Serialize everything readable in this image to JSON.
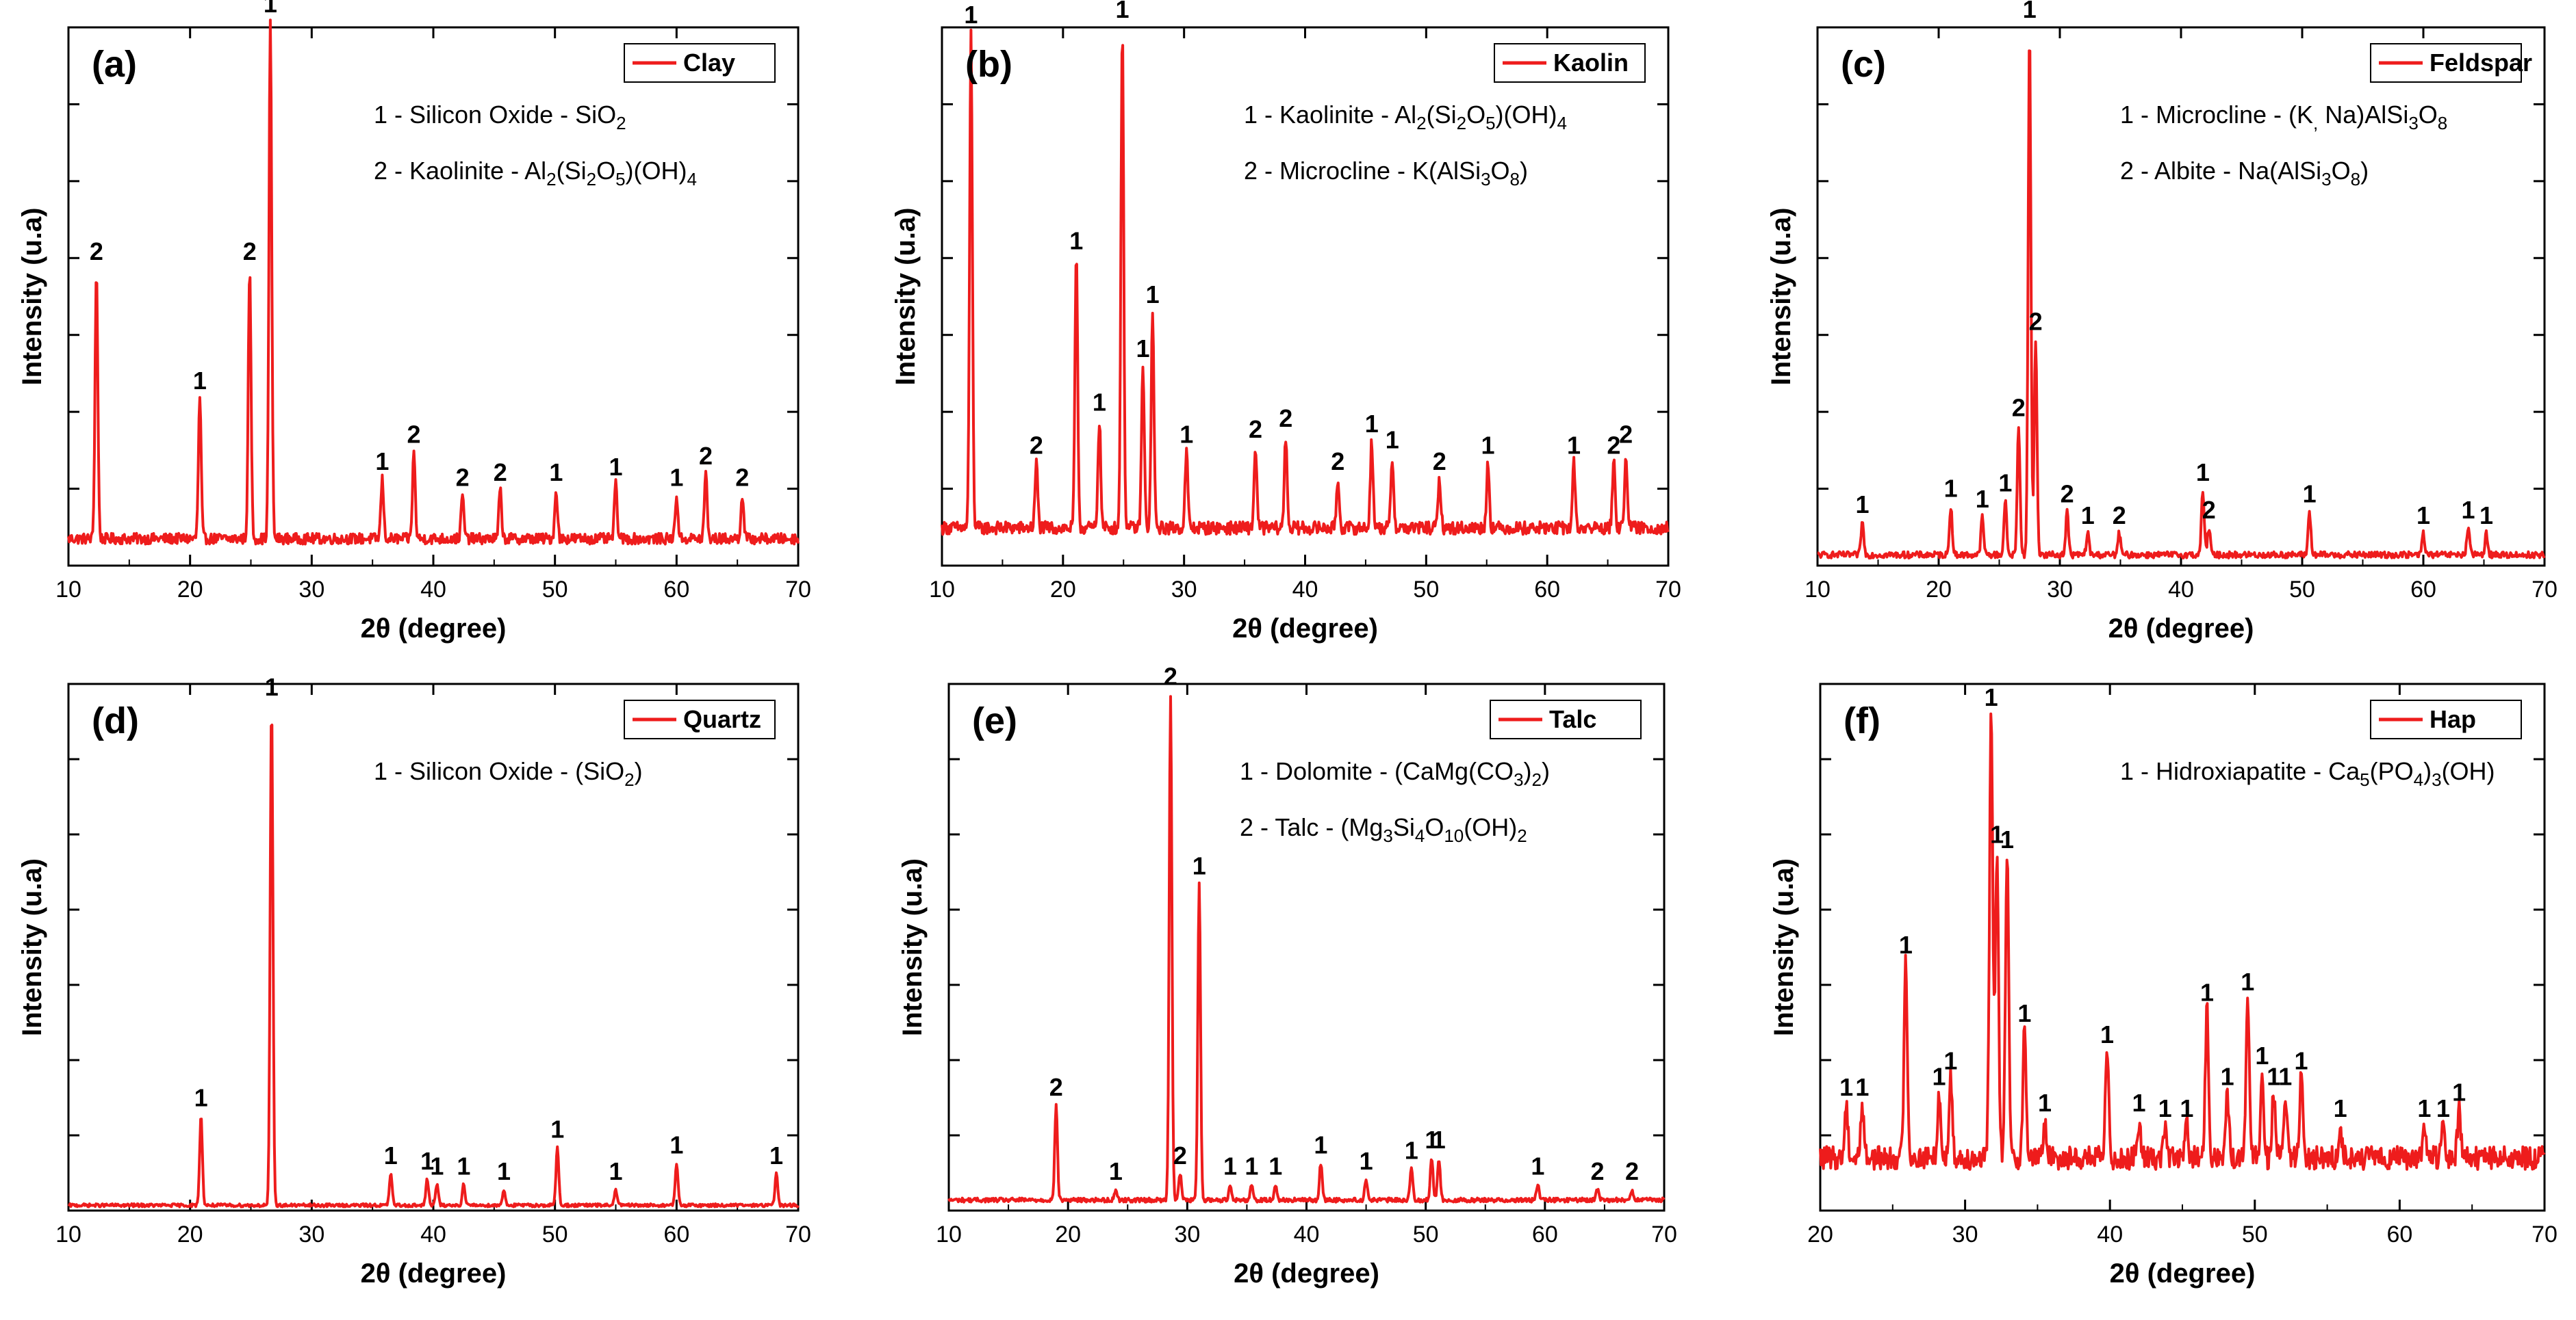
{
  "colors": {
    "trace": "#ee1c1c",
    "axis": "#000000",
    "background": "#ffffff"
  },
  "chart_data": [
    {
      "type": "line",
      "panel_label": "(a)",
      "legend": "Clay",
      "legend_position": "top-right",
      "xlabel": "2θ (degree)",
      "ylabel": "Intensity (u.a)",
      "xlim": [
        10,
        70
      ],
      "ylim": [
        0,
        100
      ],
      "xticks": [
        10,
        20,
        30,
        40,
        50,
        60,
        70
      ],
      "yticks_labeled": false,
      "baseline": 5,
      "noise": 1.0,
      "annotations": [
        {
          "id": "1",
          "text": "1 - Silicon Oxide - SiO",
          "sub": "2"
        },
        {
          "id": "2",
          "text": "2 - Kaolinite - Al",
          "sub": "2",
          "rest": "(Si",
          "sub2": "2",
          "rest2": "O",
          "sub3": "5",
          "rest3": ")(OH)",
          "sub4": "4"
        }
      ],
      "peaks": [
        {
          "x": 12.3,
          "y": 50,
          "label": "2"
        },
        {
          "x": 20.8,
          "y": 26,
          "label": "1"
        },
        {
          "x": 24.9,
          "y": 50,
          "label": "2"
        },
        {
          "x": 26.6,
          "y": 96,
          "label": "1"
        },
        {
          "x": 35.8,
          "y": 11,
          "label": "1"
        },
        {
          "x": 38.4,
          "y": 16,
          "label": "2"
        },
        {
          "x": 42.4,
          "y": 8,
          "label": "2"
        },
        {
          "x": 45.5,
          "y": 9,
          "label": "2"
        },
        {
          "x": 50.1,
          "y": 9,
          "label": "1"
        },
        {
          "x": 55.0,
          "y": 10,
          "label": "1"
        },
        {
          "x": 60.0,
          "y": 8,
          "label": "1"
        },
        {
          "x": 62.4,
          "y": 12,
          "label": "2"
        },
        {
          "x": 65.4,
          "y": 8,
          "label": "2"
        }
      ]
    },
    {
      "type": "line",
      "panel_label": "(b)",
      "legend": "Kaolin",
      "legend_position": "top-right",
      "xlabel": "2θ (degree)",
      "ylabel": "Intensity (u.a)",
      "xlim": [
        10,
        70
      ],
      "ylim": [
        0,
        100
      ],
      "xticks": [
        10,
        20,
        30,
        40,
        50,
        60,
        70
      ],
      "yticks_labeled": false,
      "baseline": 7,
      "noise": 1.2,
      "annotations": [
        {
          "text": "1 - Kaolinite - Al",
          "sub": "2",
          "rest": "(Si",
          "sub2": "2",
          "rest2": "O",
          "sub3": "5",
          "rest3": ")(OH)",
          "sub4": "4"
        },
        {
          "text": "2 - Microcline - K(AlSi",
          "sub": "3",
          "rest": "O",
          "sub2": "8",
          "rest2": ")"
        }
      ],
      "peaks": [
        {
          "x": 12.4,
          "y": 92,
          "label": "1"
        },
        {
          "x": 17.8,
          "y": 12,
          "label": "2"
        },
        {
          "x": 21.1,
          "y": 50,
          "label": "1"
        },
        {
          "x": 23.0,
          "y": 20,
          "label": "1"
        },
        {
          "x": 24.9,
          "y": 93,
          "label": "1"
        },
        {
          "x": 26.6,
          "y": 30,
          "label": "1"
        },
        {
          "x": 27.4,
          "y": 40,
          "label": "1"
        },
        {
          "x": 30.2,
          "y": 14,
          "label": "1"
        },
        {
          "x": 35.9,
          "y": 15,
          "label": "2"
        },
        {
          "x": 38.4,
          "y": 17,
          "label": "2"
        },
        {
          "x": 42.7,
          "y": 9,
          "label": "2"
        },
        {
          "x": 45.5,
          "y": 16,
          "label": "1"
        },
        {
          "x": 47.2,
          "y": 13,
          "label": "1"
        },
        {
          "x": 51.1,
          "y": 9,
          "label": "2"
        },
        {
          "x": 55.1,
          "y": 12,
          "label": "1"
        },
        {
          "x": 62.2,
          "y": 12,
          "label": "1"
        },
        {
          "x": 65.5,
          "y": 12,
          "label": "2"
        },
        {
          "x": 66.5,
          "y": 14,
          "label": "2"
        }
      ]
    },
    {
      "type": "line",
      "panel_label": "(c)",
      "legend": "Feldspar",
      "legend_position": "top-right",
      "xlabel": "2θ (degree)",
      "ylabel": "Intensity (u.a)",
      "xlim": [
        10,
        70
      ],
      "ylim": [
        0,
        100
      ],
      "xticks": [
        10,
        20,
        30,
        40,
        50,
        60,
        70
      ],
      "yticks_labeled": false,
      "baseline": 2,
      "noise": 0.6,
      "annotations": [
        {
          "text": "1 - Microcline - (K",
          "sub": ",",
          "rest": " Na)AlSi",
          "sub2": "3",
          "rest2": "O",
          "sub3": "8"
        },
        {
          "text": "2 - Albite - Na(AlSi",
          "sub": "3",
          "rest": "O",
          "sub2": "8",
          "rest2": ")"
        }
      ],
      "peaks": [
        {
          "x": 13.7,
          "y": 6,
          "label": "1"
        },
        {
          "x": 21.0,
          "y": 9,
          "label": "1"
        },
        {
          "x": 23.6,
          "y": 7,
          "label": "1"
        },
        {
          "x": 25.5,
          "y": 10,
          "label": "1"
        },
        {
          "x": 26.6,
          "y": 24,
          "label": "2"
        },
        {
          "x": 27.5,
          "y": 98,
          "label": "1"
        },
        {
          "x": 28.0,
          "y": 40,
          "label": "2"
        },
        {
          "x": 30.6,
          "y": 8,
          "label": "2"
        },
        {
          "x": 32.3,
          "y": 4,
          "label": "1"
        },
        {
          "x": 34.9,
          "y": 4,
          "label": "2"
        },
        {
          "x": 41.8,
          "y": 12,
          "label": "1"
        },
        {
          "x": 42.3,
          "y": 5,
          "label": "2"
        },
        {
          "x": 50.6,
          "y": 8,
          "label": "1"
        },
        {
          "x": 60.0,
          "y": 4,
          "label": "1"
        },
        {
          "x": 63.7,
          "y": 5,
          "label": "1"
        },
        {
          "x": 65.2,
          "y": 4,
          "label": "1"
        }
      ]
    },
    {
      "type": "line",
      "panel_label": "(d)",
      "legend": "Quartz",
      "legend_position": "top-right",
      "xlabel": "2θ (degree)",
      "ylabel": "Intensity (u.a)",
      "xlim": [
        10,
        70
      ],
      "ylim": [
        0,
        100
      ],
      "xticks": [
        10,
        20,
        30,
        40,
        50,
        60,
        70
      ],
      "yticks_labeled": false,
      "baseline": 1,
      "noise": 0.3,
      "annotations": [
        {
          "text": "1 - Silicon Oxide - (SiO",
          "sub": "2",
          "rest": ")"
        }
      ],
      "peaks": [
        {
          "x": 20.9,
          "y": 17,
          "label": "1"
        },
        {
          "x": 26.7,
          "y": 95,
          "label": "1"
        },
        {
          "x": 36.5,
          "y": 6,
          "label": "1"
        },
        {
          "x": 39.5,
          "y": 5,
          "label": "1"
        },
        {
          "x": 40.3,
          "y": 4,
          "label": "1"
        },
        {
          "x": 42.5,
          "y": 4,
          "label": "1"
        },
        {
          "x": 45.8,
          "y": 3,
          "label": "1"
        },
        {
          "x": 50.2,
          "y": 11,
          "label": "1"
        },
        {
          "x": 55.0,
          "y": 3,
          "label": "1"
        },
        {
          "x": 60.0,
          "y": 8,
          "label": "1"
        },
        {
          "x": 68.2,
          "y": 6,
          "label": "1"
        }
      ]
    },
    {
      "type": "line",
      "panel_label": "(e)",
      "legend": "Talc",
      "legend_position": "top-right",
      "xlabel": "2θ (degree)",
      "ylabel": "Intensity (u.a)",
      "xlim": [
        10,
        70
      ],
      "ylim": [
        0,
        100
      ],
      "xticks": [
        10,
        20,
        30,
        40,
        50,
        60,
        70
      ],
      "yticks_labeled": false,
      "baseline": 2,
      "noise": 0.4,
      "annotations": [
        {
          "text": "1 - Dolomite - (CaMg(CO",
          "sub": "3",
          "rest": ")",
          "sub2": "2",
          "rest2": ")"
        },
        {
          "text": "2 - Talc - (Mg",
          "sub": "3",
          "rest": "Si",
          "sub2": "4",
          "rest2": "O",
          "sub3": "10",
          "rest3": "(OH)",
          "sub4": "2"
        }
      ],
      "peaks": [
        {
          "x": 19.0,
          "y": 18,
          "label": "2"
        },
        {
          "x": 24.0,
          "y": 2,
          "label": "1"
        },
        {
          "x": 28.6,
          "y": 96,
          "label": "2"
        },
        {
          "x": 29.4,
          "y": 5,
          "label": "2"
        },
        {
          "x": 31.0,
          "y": 60,
          "label": "1"
        },
        {
          "x": 33.6,
          "y": 3,
          "label": "1"
        },
        {
          "x": 35.4,
          "y": 3,
          "label": "1"
        },
        {
          "x": 37.4,
          "y": 3,
          "label": "1"
        },
        {
          "x": 41.2,
          "y": 7,
          "label": "1"
        },
        {
          "x": 45.0,
          "y": 4,
          "label": "1"
        },
        {
          "x": 48.8,
          "y": 6,
          "label": "1"
        },
        {
          "x": 50.5,
          "y": 8,
          "label": "1"
        },
        {
          "x": 51.1,
          "y": 8,
          "label": "1"
        },
        {
          "x": 59.4,
          "y": 3,
          "label": "1"
        },
        {
          "x": 64.4,
          "y": 2,
          "label": "2"
        },
        {
          "x": 67.3,
          "y": 2,
          "label": "2"
        }
      ]
    },
    {
      "type": "line",
      "panel_label": "(f)",
      "legend": "Hap",
      "legend_position": "top-right",
      "xlabel": "2θ (degree)",
      "ylabel": "Intensity (u.a)",
      "xlim": [
        20,
        70
      ],
      "ylim": [
        0,
        100
      ],
      "xticks": [
        20,
        30,
        40,
        50,
        60,
        70
      ],
      "yticks_labeled": false,
      "baseline": 10,
      "noise": 2.2,
      "annotations": [
        {
          "text": "1 - Hidroxiapatite - Ca",
          "sub": "5",
          "rest": "(PO",
          "sub2": "4",
          "rest2": ")",
          "sub3": "3",
          "rest3": "(OH)"
        }
      ],
      "peaks": [
        {
          "x": 21.8,
          "y": 10,
          "label": "1"
        },
        {
          "x": 22.9,
          "y": 10,
          "label": "1"
        },
        {
          "x": 25.9,
          "y": 37,
          "label": "1"
        },
        {
          "x": 28.2,
          "y": 12,
          "label": "1"
        },
        {
          "x": 29.0,
          "y": 15,
          "label": "1"
        },
        {
          "x": 31.8,
          "y": 84,
          "label": "1"
        },
        {
          "x": 32.2,
          "y": 58,
          "label": "1"
        },
        {
          "x": 32.9,
          "y": 57,
          "label": "1"
        },
        {
          "x": 34.1,
          "y": 24,
          "label": "1"
        },
        {
          "x": 35.5,
          "y": 7,
          "label": "1"
        },
        {
          "x": 39.8,
          "y": 20,
          "label": "1"
        },
        {
          "x": 42.0,
          "y": 7,
          "label": "1"
        },
        {
          "x": 43.8,
          "y": 6,
          "label": "1"
        },
        {
          "x": 45.3,
          "y": 6,
          "label": "1"
        },
        {
          "x": 46.7,
          "y": 28,
          "label": "1"
        },
        {
          "x": 48.1,
          "y": 12,
          "label": "1"
        },
        {
          "x": 49.5,
          "y": 30,
          "label": "1"
        },
        {
          "x": 50.5,
          "y": 16,
          "label": "1"
        },
        {
          "x": 51.3,
          "y": 12,
          "label": "1"
        },
        {
          "x": 52.1,
          "y": 12,
          "label": "1"
        },
        {
          "x": 53.2,
          "y": 15,
          "label": "1"
        },
        {
          "x": 55.9,
          "y": 6,
          "label": "1"
        },
        {
          "x": 61.7,
          "y": 6,
          "label": "1"
        },
        {
          "x": 63.0,
          "y": 6,
          "label": "1"
        },
        {
          "x": 64.1,
          "y": 9,
          "label": "1"
        }
      ]
    }
  ]
}
